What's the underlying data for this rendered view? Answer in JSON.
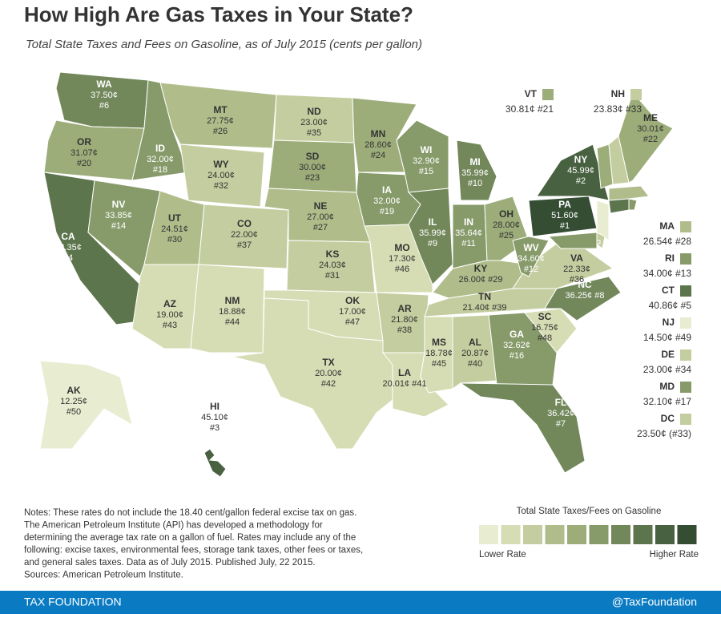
{
  "header": {
    "title": "How High Are Gas Taxes in Your State?",
    "subtitle": "Total State Taxes and Fees on Gasoline, as of July 2015 (cents per gallon)"
  },
  "states": [
    {
      "abbr": "WA",
      "value": 37.5,
      "value_label": "37.50¢",
      "rank": "#6"
    },
    {
      "abbr": "OR",
      "value": 31.07,
      "value_label": "31.07¢",
      "rank": "#20"
    },
    {
      "abbr": "CA",
      "value": 42.35,
      "value_label": "42.35¢",
      "rank": "#4"
    },
    {
      "abbr": "NV",
      "value": 33.85,
      "value_label": "33.85¢",
      "rank": "#14"
    },
    {
      "abbr": "ID",
      "value": 32.0,
      "value_label": "32.00¢",
      "rank": "#18"
    },
    {
      "abbr": "MT",
      "value": 27.75,
      "value_label": "27.75¢",
      "rank": "#26"
    },
    {
      "abbr": "WY",
      "value": 24.0,
      "value_label": "24.00¢",
      "rank": "#32"
    },
    {
      "abbr": "UT",
      "value": 24.51,
      "value_label": "24.51¢",
      "rank": "#30"
    },
    {
      "abbr": "CO",
      "value": 22.0,
      "value_label": "22.00¢",
      "rank": "#37"
    },
    {
      "abbr": "AZ",
      "value": 19.0,
      "value_label": "19.00¢",
      "rank": "#43"
    },
    {
      "abbr": "NM",
      "value": 18.88,
      "value_label": "18.88¢",
      "rank": "#44"
    },
    {
      "abbr": "ND",
      "value": 23.0,
      "value_label": "23.00¢",
      "rank": "#35"
    },
    {
      "abbr": "SD",
      "value": 30.0,
      "value_label": "30.00¢",
      "rank": "#23"
    },
    {
      "abbr": "NE",
      "value": 27.0,
      "value_label": "27.00¢",
      "rank": "#27"
    },
    {
      "abbr": "KS",
      "value": 24.03,
      "value_label": "24.03¢",
      "rank": "#31"
    },
    {
      "abbr": "OK",
      "value": 17.0,
      "value_label": "17.00¢",
      "rank": "#47"
    },
    {
      "abbr": "TX",
      "value": 20.0,
      "value_label": "20.00¢",
      "rank": "#42"
    },
    {
      "abbr": "MN",
      "value": 28.6,
      "value_label": "28.60¢",
      "rank": "#24"
    },
    {
      "abbr": "IA",
      "value": 32.0,
      "value_label": "32.00¢",
      "rank": "#19"
    },
    {
      "abbr": "MO",
      "value": 17.3,
      "value_label": "17.30¢",
      "rank": "#46"
    },
    {
      "abbr": "AR",
      "value": 21.8,
      "value_label": "21.80¢",
      "rank": "#38"
    },
    {
      "abbr": "LA",
      "value": 20.01,
      "value_label": "20.01¢",
      "rank": "#41"
    },
    {
      "abbr": "WI",
      "value": 32.9,
      "value_label": "32.90¢",
      "rank": "#15"
    },
    {
      "abbr": "IL",
      "value": 35.99,
      "value_label": "35.99¢",
      "rank": "#9"
    },
    {
      "abbr": "MI",
      "value": 35.99,
      "value_label": "35.99¢",
      "rank": "#10"
    },
    {
      "abbr": "IN",
      "value": 35.64,
      "value_label": "35.64¢",
      "rank": "#11"
    },
    {
      "abbr": "OH",
      "value": 28.0,
      "value_label": "28.00¢",
      "rank": "#25"
    },
    {
      "abbr": "KY",
      "value": 26.0,
      "value_label": "26.00¢",
      "rank": "#29"
    },
    {
      "abbr": "TN",
      "value": 21.4,
      "value_label": "21.40¢",
      "rank": "#39"
    },
    {
      "abbr": "MS",
      "value": 18.78,
      "value_label": "18.78¢",
      "rank": "#45"
    },
    {
      "abbr": "AL",
      "value": 20.87,
      "value_label": "20.87¢",
      "rank": "#40"
    },
    {
      "abbr": "GA",
      "value": 32.62,
      "value_label": "32.62¢",
      "rank": "#16"
    },
    {
      "abbr": "FL",
      "value": 36.42,
      "value_label": "36.42¢",
      "rank": "#7"
    },
    {
      "abbr": "SC",
      "value": 16.75,
      "value_label": "16.75¢",
      "rank": "#48"
    },
    {
      "abbr": "NC",
      "value": 36.25,
      "value_label": "36.25¢",
      "rank": "#8"
    },
    {
      "abbr": "VA",
      "value": 22.33,
      "value_label": "22.33¢",
      "rank": "#36"
    },
    {
      "abbr": "WV",
      "value": 34.6,
      "value_label": "34.60¢",
      "rank": "#12"
    },
    {
      "abbr": "PA",
      "value": 51.6,
      "value_label": "51.60¢",
      "rank": "#1"
    },
    {
      "abbr": "NY",
      "value": 45.99,
      "value_label": "45.99¢",
      "rank": "#2"
    },
    {
      "abbr": "ME",
      "value": 30.01,
      "value_label": "30.01¢",
      "rank": "#22"
    },
    {
      "abbr": "AK",
      "value": 12.25,
      "value_label": "12.25¢",
      "rank": "#50"
    },
    {
      "abbr": "HI",
      "value": 45.1,
      "value_label": "45.10¢",
      "rank": "#3"
    },
    {
      "abbr": "VT",
      "value": 30.81,
      "value_label": "30.81¢",
      "rank": "#21"
    },
    {
      "abbr": "NH",
      "value": 23.83,
      "value_label": "23.83¢",
      "rank": "#33"
    },
    {
      "abbr": "MA",
      "value": 26.54,
      "value_label": "26.54¢",
      "rank": "#28"
    },
    {
      "abbr": "RI",
      "value": 34.0,
      "value_label": "34.00¢",
      "rank": "#13"
    },
    {
      "abbr": "CT",
      "value": 40.86,
      "value_label": "40.86¢",
      "rank": "#5"
    },
    {
      "abbr": "NJ",
      "value": 14.5,
      "value_label": "14.50¢",
      "rank": "#49"
    },
    {
      "abbr": "DE",
      "value": 23.0,
      "value_label": "23.00¢",
      "rank": "#34"
    },
    {
      "abbr": "MD",
      "value": 32.1,
      "value_label": "32.10¢",
      "rank": "#17"
    },
    {
      "abbr": "DC",
      "value": 23.5,
      "value_label": "23.50¢",
      "rank": "(#33)"
    }
  ],
  "notes": [
    "Notes: These rates do not include the 18.40 cent/gallon federal excise tax on gas.",
    "The American Petroleum Institute (API) has developed a methodology for",
    "determining the average tax rate on a gallon of fuel. Rates may include any of the",
    "following: excise taxes, environmental fees, storage tank taxes, other fees or taxes,",
    "and general sales taxes. Data as of July 2015. Published July, 22 2015.",
    "Sources: American Petroleum Institute."
  ],
  "legend": {
    "title": "Total State Taxes/Fees on Gasoline",
    "colors": [
      "#e8ecd0",
      "#d6ddb4",
      "#c4cd9f",
      "#b0bd8b",
      "#9cad7a",
      "#879b6a",
      "#72885b",
      "#5d754d",
      "#486140",
      "#344d33"
    ],
    "low": "Lower Rate",
    "high": "Higher Rate"
  },
  "footer": {
    "brand": "TAX FOUNDATION",
    "handle": "@TaxFoundation"
  }
}
